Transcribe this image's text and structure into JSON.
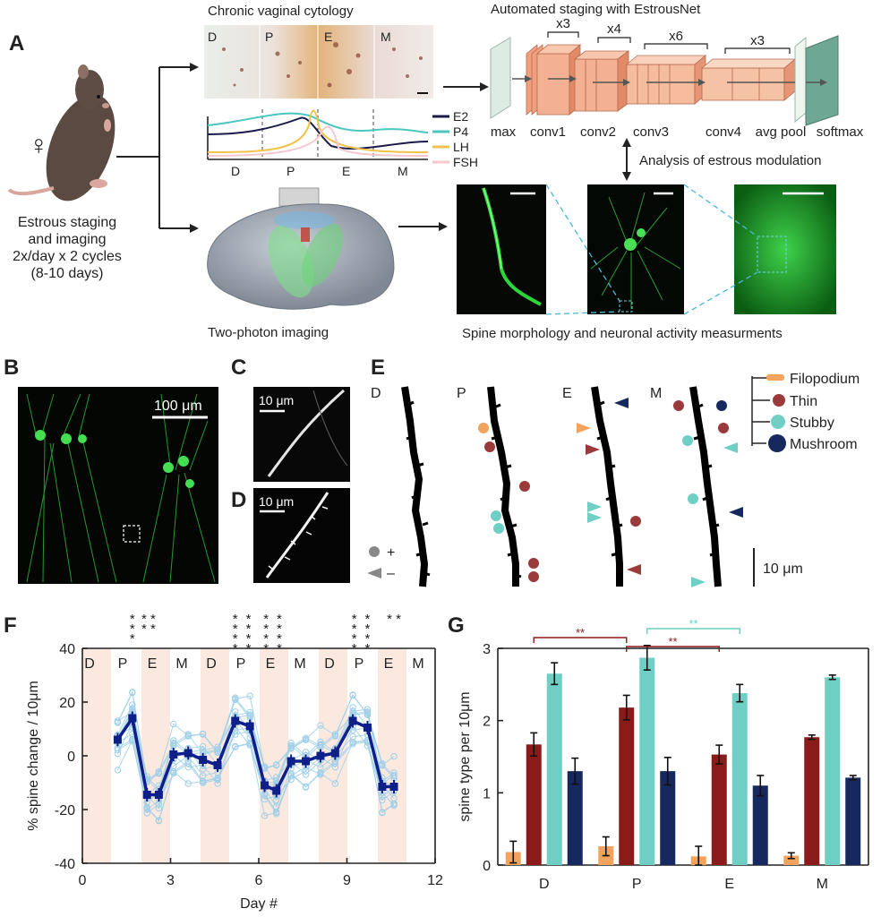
{
  "panel_labels": {
    "a": "A",
    "b": "B",
    "c": "C",
    "d": "D",
    "e": "E",
    "f": "F",
    "g": "G"
  },
  "panel_a": {
    "mouse_caption": [
      "Estrous staging",
      "and imaging",
      "2x/day x 2 cycles",
      "(8-10 days)"
    ],
    "female_symbol": "♀",
    "cytology_title": "Chronic vaginal cytology",
    "cytology_stages": [
      "D",
      "P",
      "E",
      "M"
    ],
    "hormone_legend": [
      {
        "name": "E2",
        "color": "#1b1a4a"
      },
      {
        "name": "P4",
        "color": "#4cc7c0"
      },
      {
        "name": "LH",
        "color": "#f2c24a"
      },
      {
        "name": "FSH",
        "color": "#f7c6cf"
      }
    ],
    "hormone_axis_stages": [
      "D",
      "P",
      "E",
      "M"
    ],
    "estrousnet_title": "Automated staging with EstrousNet",
    "net_repeats": [
      "x3",
      "x4",
      "x6",
      "x3"
    ],
    "net_layers": [
      "max",
      "conv1",
      "conv2",
      "conv3",
      "conv4",
      "avg pool",
      "softmax"
    ],
    "modulation_label": "Analysis of estrous modulation",
    "two_photon_label": "Two-photon imaging",
    "measurement_label": "Spine morphology and neuronal activity measurments"
  },
  "panel_b": {
    "scale_label": "100 μm"
  },
  "panel_c": {
    "scale_label": "10 μm"
  },
  "panel_d": {
    "scale_label": "10 μm"
  },
  "panel_e": {
    "stages": [
      "D",
      "P",
      "E",
      "M"
    ],
    "legend": [
      {
        "name": "Filopodium",
        "color": "#f2a35e"
      },
      {
        "name": "Thin",
        "color": "#9b3a3a"
      },
      {
        "name": "Stubby",
        "color": "#6fcfc4"
      },
      {
        "name": "Mushroom",
        "color": "#16285e"
      }
    ],
    "gain_symbol": "+",
    "loss_symbol": "–",
    "scale_label": "10 μm"
  },
  "chart_data": [
    {
      "id": "F",
      "type": "line",
      "title": "",
      "xlabel": "Day #",
      "ylabel": "% spine change / 10μm",
      "xlim": [
        0,
        12
      ],
      "ylim": [
        -40,
        40
      ],
      "xticks": [
        "0",
        "3",
        "6",
        "9",
        "12"
      ],
      "yticks": [
        "40",
        "20",
        "0",
        "-20",
        "-40"
      ],
      "stage_labels": [
        "D",
        "P",
        "E",
        "M",
        "D",
        "P",
        "E",
        "M",
        "D",
        "P",
        "E",
        "M"
      ],
      "significance": [
        {
          "x": 1.7,
          "stars": [
            "*",
            "*",
            "*"
          ]
        },
        {
          "x": 2.25,
          "stars": [
            "* *",
            "* *"
          ]
        },
        {
          "x": 5.2,
          "stars": [
            "*",
            "*",
            "*",
            "*"
          ]
        },
        {
          "x": 5.65,
          "stars": [
            "*",
            "*",
            "*",
            "*"
          ]
        },
        {
          "x": 6.25,
          "stars": [
            "*",
            "*",
            "*",
            "*"
          ]
        },
        {
          "x": 6.7,
          "stars": [
            "*",
            "*",
            "*",
            "*"
          ]
        },
        {
          "x": 9.25,
          "stars": [
            "*",
            "*",
            "*",
            "*"
          ]
        },
        {
          "x": 9.7,
          "stars": [
            "*",
            "*",
            "*",
            "*"
          ]
        },
        {
          "x": 10.6,
          "stars": [
            "* *"
          ]
        }
      ],
      "series": [
        {
          "name": "mean",
          "color": "#0f1f8a",
          "x": [
            1.2,
            1.7,
            2.2,
            2.6,
            3.1,
            3.6,
            4.1,
            4.6,
            5.2,
            5.7,
            6.2,
            6.6,
            7.1,
            7.6,
            8.1,
            8.6,
            9.2,
            9.7,
            10.2,
            10.6
          ],
          "values": [
            6,
            14,
            -14.5,
            -14.5,
            0.5,
            1,
            -1.5,
            -3.5,
            13,
            11,
            -11,
            -13,
            -2,
            -2,
            0,
            1,
            13,
            10.5,
            -11.5,
            -11.5
          ]
        }
      ]
    },
    {
      "id": "G",
      "type": "bar",
      "title": "",
      "xlabel": "",
      "ylabel": "spine type per 10μm",
      "ylim": [
        0,
        3
      ],
      "yticks": [
        "0",
        "1",
        "2",
        "3"
      ],
      "categories": [
        "D",
        "P",
        "E",
        "M"
      ],
      "series": [
        {
          "name": "Filopodium",
          "color": "#f2a35e",
          "values": [
            0.18,
            0.26,
            0.12,
            0.13
          ],
          "errors": [
            0.15,
            0.13,
            0.14,
            0.04
          ]
        },
        {
          "name": "Thin",
          "color": "#8b1a1a",
          "values": [
            1.67,
            2.18,
            1.53,
            1.77
          ],
          "errors": [
            0.16,
            0.17,
            0.13,
            0.03
          ]
        },
        {
          "name": "Stubby",
          "color": "#6fcfc4",
          "values": [
            2.65,
            2.87,
            2.38,
            2.6
          ],
          "errors": [
            0.15,
            0.17,
            0.12,
            0.03
          ]
        },
        {
          "name": "Mushroom",
          "color": "#16285e",
          "values": [
            1.3,
            1.3,
            1.1,
            1.21
          ],
          "errors": [
            0.18,
            0.19,
            0.14,
            0.03
          ]
        }
      ],
      "significance": [
        {
          "from": 0,
          "to": 1,
          "series": "Thin",
          "label": "**",
          "color": "#8b1a1a"
        },
        {
          "from": 1,
          "to": 2,
          "series": "Thin",
          "label": "**",
          "color": "#8b1a1a"
        },
        {
          "from": 1,
          "to": 2,
          "series": "Stubby",
          "label": "**",
          "color": "#6fcfc4"
        }
      ]
    }
  ]
}
